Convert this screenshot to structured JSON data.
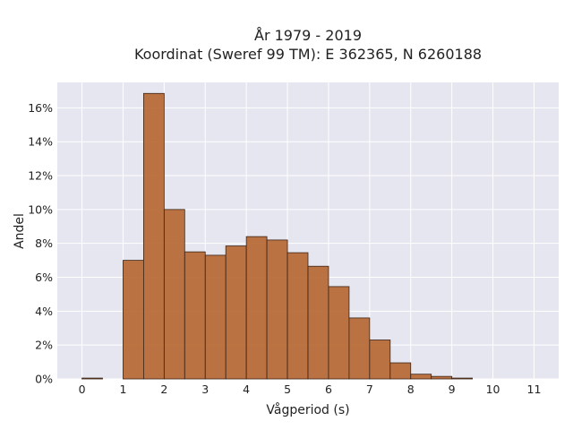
{
  "chart_data": {
    "type": "bar",
    "title_line1": "År 1979 - 2019",
    "title_line2": "Koordinat (Sweref 99 TM): E 362365, N 6260188",
    "xlabel": "Vågperiod (s)",
    "ylabel": "Andel",
    "bin_width": 0.5,
    "bin_starts": [
      0,
      0.5,
      1,
      1.5,
      2,
      2.5,
      3,
      3.5,
      4,
      4.5,
      5,
      5.5,
      6,
      6.5,
      7,
      7.5,
      8,
      8.5,
      9,
      9.5,
      10,
      10.5
    ],
    "values": [
      0.05,
      0,
      7.0,
      16.85,
      10.0,
      7.5,
      7.3,
      7.85,
      8.4,
      8.2,
      7.45,
      6.65,
      5.45,
      3.6,
      2.3,
      0.95,
      0.28,
      0.15,
      0.05,
      0,
      0,
      0
    ],
    "xlim": [
      -0.6,
      11.6
    ],
    "ylim": [
      0,
      17.5
    ],
    "xticks": [
      0,
      1,
      2,
      3,
      4,
      5,
      6,
      7,
      8,
      9,
      10,
      11
    ],
    "xtick_labels": [
      "0",
      "1",
      "2",
      "3",
      "4",
      "5",
      "6",
      "7",
      "8",
      "9",
      "10",
      "11"
    ],
    "yticks": [
      0,
      2,
      4,
      6,
      8,
      10,
      12,
      14,
      16
    ],
    "ytick_labels": [
      "0%",
      "2%",
      "4%",
      "6%",
      "8%",
      "10%",
      "12%",
      "14%",
      "16%"
    ],
    "y_unit": "percent",
    "grid": true,
    "colors": {
      "bar_fill": "#b5652f",
      "bar_stroke": "#3b2416",
      "plot_background": "#e5e6ef",
      "grid": "#ffffff"
    }
  }
}
